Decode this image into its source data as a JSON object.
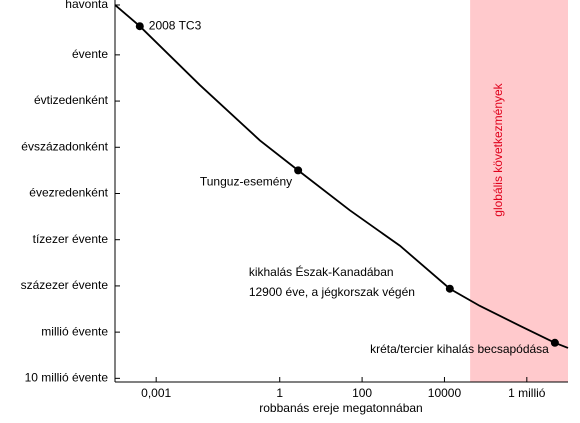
{
  "chart_data": {
    "type": "line",
    "x_label": "robbanás ereje megatonnában",
    "xscale": "log",
    "yscale": "log",
    "y_reversed": true,
    "xlim": [
      0.0001,
      10000000
    ],
    "ylim": [
      0.065,
      12000000
    ],
    "xticks": [
      {
        "value": 0.001,
        "label": "0,001"
      },
      1,
      100,
      10000,
      {
        "value": 1000000,
        "label": "1 millió"
      }
    ],
    "yticks": [
      {
        "value": 0.0833,
        "label": "havonta"
      },
      {
        "value": 1,
        "label": "évente"
      },
      {
        "value": 10,
        "label": "évtizedenként"
      },
      {
        "value": 100,
        "label": "évszázadonként"
      },
      {
        "value": 1000,
        "label": "évezredenként"
      },
      {
        "value": 10000,
        "label": "tízezer évente"
      },
      {
        "value": 100000,
        "label": "százezer évente"
      },
      {
        "value": 1000000,
        "label": "millió évente"
      },
      {
        "value": 10000000,
        "label": "10 millió évente"
      }
    ],
    "series": [
      {
        "color": "#000000",
        "x": [
          0.0001,
          0.0004,
          0.0115,
          0.33,
          2.8,
          50,
          830,
          13500,
          72000,
          680000,
          4800000,
          10000000
        ],
        "values": [
          0.083,
          0.24,
          4.5,
          71,
          316,
          2300,
          13500,
          115000,
          270000,
          730000,
          1700000,
          2200000
        ]
      }
    ],
    "events": [
      {
        "x": 0.0004,
        "y": 0.24,
        "lines": [
          "2008 TC3"
        ]
      },
      {
        "x": 2.8,
        "y": 316,
        "lines": [
          "Tunguz-esemény"
        ]
      },
      {
        "x": 13500,
        "y": 115000,
        "lines": [
          "kikhalás Észak-Kanadában",
          "12900 éve, a jégkorszak végén"
        ]
      },
      {
        "x": 4800000,
        "y": 1700000,
        "lines": [
          "kréta/tercier kihalás becsapódása"
        ]
      }
    ],
    "region": {
      "from": 42000,
      "to": 10000000,
      "label": "globális következmények",
      "color": "#ffc9cc",
      "label_color": "#e0001b"
    }
  }
}
